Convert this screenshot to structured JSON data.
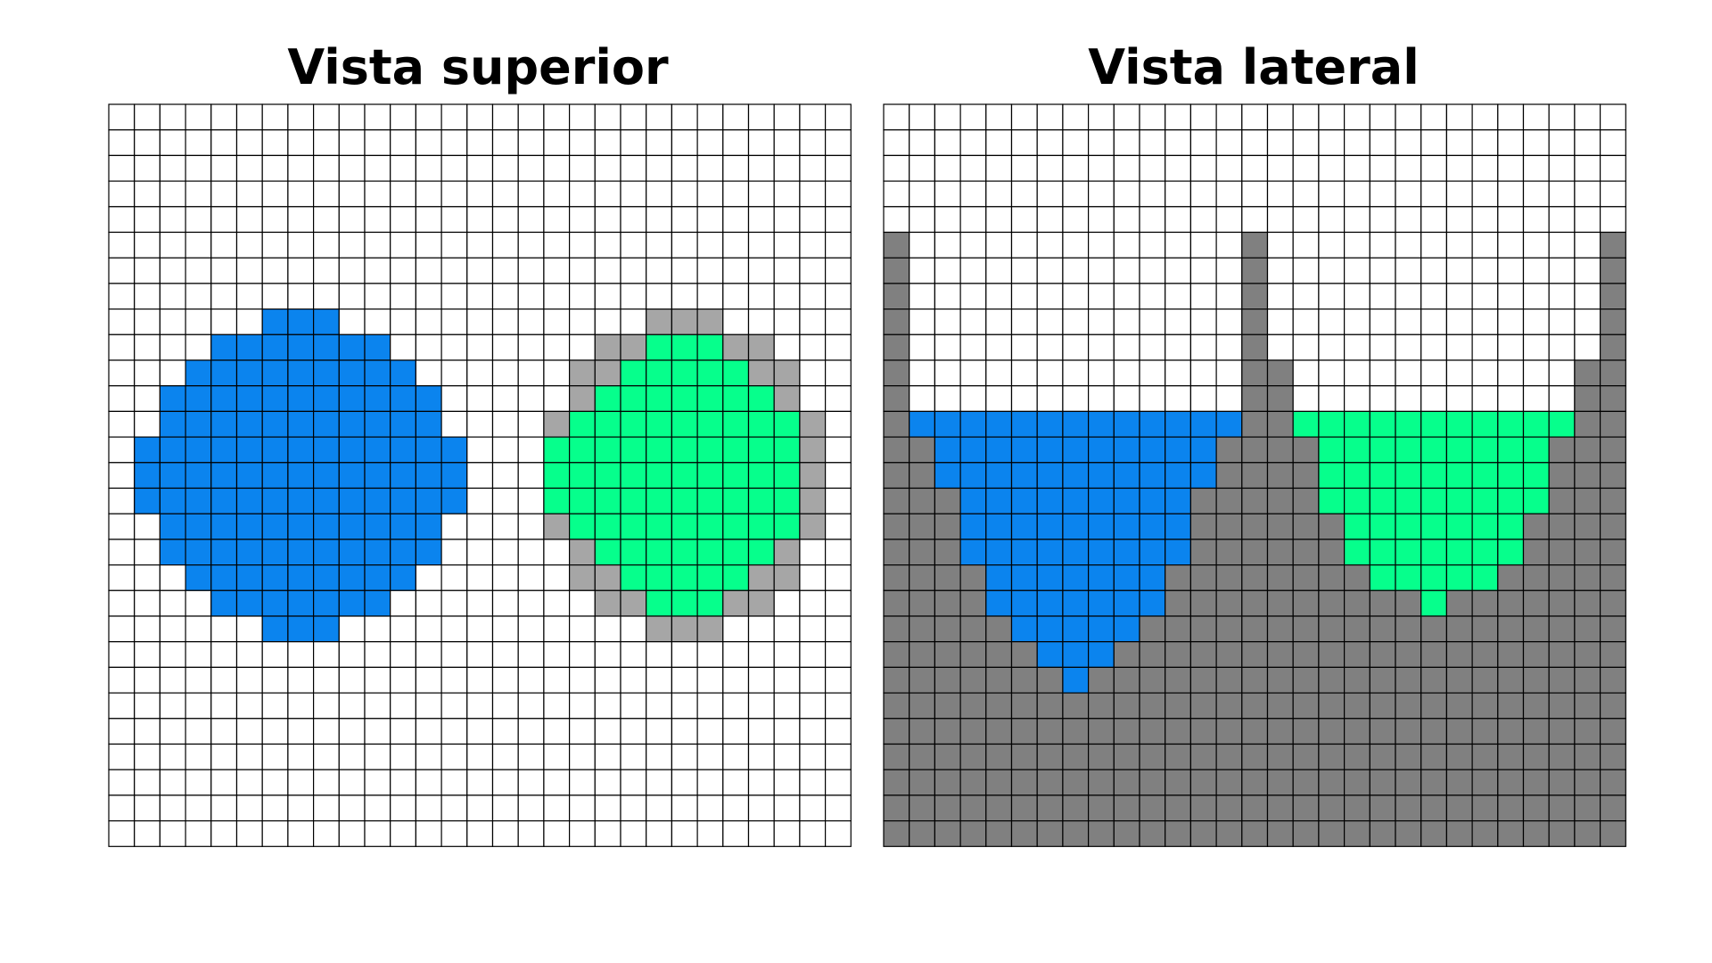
{
  "diagrams": [
    {
      "id": "top-view",
      "title": "Vista superior",
      "cols": 29,
      "rows": 29,
      "palette": {
        "W": "#ffffff",
        "B": "#0b84ee",
        "G": "#06ff8c",
        "L": "#a6a6a6",
        "D": "#808080"
      },
      "grid": [
        "WWWWWWWWWWWWWWWWWWWWWWWWWWWWW",
        "WWWWWWWWWWWWWWWWWWWWWWWWWWWWW",
        "WWWWWWWWWWWWWWWWWWWWWWWWWWWWW",
        "WWWWWWWWWWWWWWWWWWWWWWWWWWWWW",
        "WWWWWWWWWWWWWWWWWWWWWWWWWWWWW",
        "WWWWWWWWWWWWWWWWWWWWWWWWWWWWW",
        "WWWWWWWWWWWWWWWWWWWWWWWWWWWWW",
        "WWWWWWWWWWWWWWWWWWWWWWWWWWWWW",
        "WWWWWWBBBWWWWWWWWWWWWLLLWWWWW",
        "WWWWBBBBBBBWWWWWWWWLLGGGLLWWW",
        "WWWBBBBBBBBBWWWWWWLLGGGGGLLWW",
        "WWBBBBBBBBBBBWWWWWLGGGGGGGLWW",
        "WWBBBBBBBBBBBWWWWLGGGGGGGGGLW",
        "WBBBBBBBBBBBBBWWWGGGGGGGGGGLW",
        "WBBBBBBBBBBBBBWWWGGGGGGGGGGLW",
        "WBBBBBBBBBBBBBWWWGGGGGGGGGGLW",
        "WWBBBBBBBBBBBWWWWLGGGGGGGGGLW",
        "WWBBBBBBBBBBBWWWWWLGGGGGGGLWW",
        "WWWBBBBBBBBBWWWWWWLLGGGGGLLWW",
        "WWWWBBBBBBBWWWWWWWWLLGGGLLWWW",
        "WWWWWWBBBWWWWWWWWWWWWLLLWWWWW",
        "WWWWWWWWWWWWWWWWWWWWWWWWWWWWW",
        "WWWWWWWWWWWWWWWWWWWWWWWWWWWWW",
        "WWWWWWWWWWWWWWWWWWWWWWWWWWWWW",
        "WWWWWWWWWWWWWWWWWWWWWWWWWWWWW",
        "WWWWWWWWWWWWWWWWWWWWWWWWWWWWW",
        "WWWWWWWWWWWWWWWWWWWWWWWWWWWWW",
        "WWWWWWWWWWWWWWWWWWWWWWWWWWWWW",
        "WWWWWWWWWWWWWWWWWWWWWWWWWWWWW"
      ]
    },
    {
      "id": "side-view",
      "title": "Vista lateral",
      "cols": 29,
      "rows": 29,
      "palette": {
        "W": "#ffffff",
        "B": "#0b84ee",
        "G": "#06ff8c",
        "L": "#a6a6a6",
        "D": "#808080"
      },
      "grid": [
        "WWWWWWWWWWWWWWWWWWWWWWWWWWWWW",
        "WWWWWWWWWWWWWWWWWWWWWWWWWWWWW",
        "WWWWWWWWWWWWWWWWWWWWWWWWWWWWW",
        "WWWWWWWWWWWWWWWWWWWWWWWWWWWWW",
        "WWWWWWWWWWWWWWWWWWWWWWWWWWWWW",
        "DWWWWWWWWWWWWWDWWWWWWWWWWWWWD",
        "DWWWWWWWWWWWWWDWWWWWWWWWWWWWD",
        "DWWWWWWWWWWWWWDWWWWWWWWWWWWWD",
        "DWWWWWWWWWWWWWDWWWWWWWWWWWWWD",
        "DWWWWWWWWWWWWWDWWWWWWWWWWWWWD",
        "DWWWWWWWWWWWWWDDWWWWWWWWWWWDD",
        "DWWWWWWWWWWWWWDDWWWWWWWWWWWDD",
        "DBBBBBBBBBBBBBDDGGGGGGGGGGGDD",
        "DDBBBBBBBBBBBDDDDGGGGGGGGGDDD",
        "DDBBBBBBBBBBBDDDDGGGGGGGGGDDD",
        "DDDBBBBBBBBBDDDDDGGGGGGGGGDDD",
        "DDDBBBBBBBBBDDDDDDGGGGGGGDDDD",
        "DDDBBBBBBBBBDDDDDDGGGGGGGDDDD",
        "DDDDBBBBBBBDDDDDDDDGGGGGDDDDD",
        "DDDDBBBBBBBDDDDDDDDDDGDDDDDDD",
        "DDDDDBBBBBDDDDDDDDDDDDDDDDDDD",
        "DDDDDDBBBDDDDDDDDDDDDDDDDDDDD",
        "DDDDDDDBDDDDDDDDDDDDDDDDDDDDD",
        "DDDDDDDDDDDDDDDDDDDDDDDDDDDDD",
        "DDDDDDDDDDDDDDDDDDDDDDDDDDDDD",
        "DDDDDDDDDDDDDDDDDDDDDDDDDDDDD",
        "DDDDDDDDDDDDDDDDDDDDDDDDDDDDD",
        "DDDDDDDDDDDDDDDDDDDDDDDDDDDDD",
        "DDDDDDDDDDDDDDDDDDDDDDDDDDDDD"
      ]
    }
  ]
}
